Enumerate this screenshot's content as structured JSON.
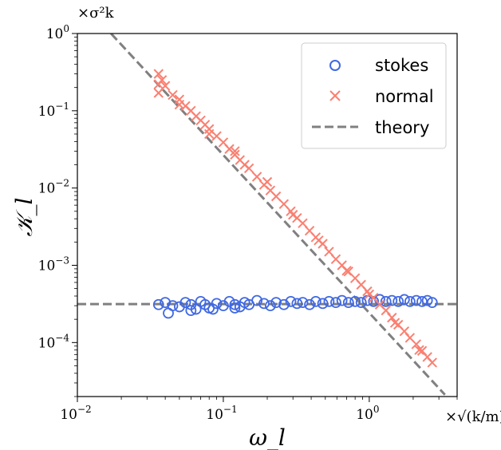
{
  "chart_data": {
    "type": "scatter",
    "xscale": "log",
    "yscale": "log",
    "xlim": [
      0.01,
      4.0
    ],
    "ylim": [
      2e-05,
      1.0
    ],
    "xlabel": "ω_l",
    "ylabel": "𝒦_l",
    "x_multiplier": "×√(k/m)",
    "y_multiplier": "×σ²k",
    "grid": false,
    "legend_position": "top-right",
    "x_ticks": [
      {
        "value": 0.01,
        "base": "10",
        "exp": "−2"
      },
      {
        "value": 0.1,
        "base": "10",
        "exp": "−1"
      },
      {
        "value": 1,
        "base": "10",
        "exp": "0"
      }
    ],
    "y_ticks": [
      {
        "value": 0.0001,
        "base": "10",
        "exp": "−4"
      },
      {
        "value": 0.001,
        "base": "10",
        "exp": "−3"
      },
      {
        "value": 0.01,
        "base": "10",
        "exp": "−2"
      },
      {
        "value": 0.1,
        "base": "10",
        "exp": "−1"
      },
      {
        "value": 1,
        "base": "10",
        "exp": "0"
      }
    ],
    "series": [
      {
        "name": "stokes",
        "marker": "circle",
        "color": "#4169e1",
        "points": [
          [
            0.036,
            0.00031
          ],
          [
            0.04,
            0.00033
          ],
          [
            0.045,
            0.0003
          ],
          [
            0.05,
            0.00029
          ],
          [
            0.055,
            0.00033
          ],
          [
            0.06,
            0.00031
          ],
          [
            0.065,
            0.00027
          ],
          [
            0.07,
            0.00034
          ],
          [
            0.075,
            0.00031
          ],
          [
            0.08,
            0.00028
          ],
          [
            0.09,
            0.00032
          ],
          [
            0.1,
            0.0003
          ],
          [
            0.11,
            0.00034
          ],
          [
            0.12,
            0.00031
          ],
          [
            0.13,
            0.00029
          ],
          [
            0.14,
            0.00033
          ],
          [
            0.15,
            0.00031
          ],
          [
            0.17,
            0.00035
          ],
          [
            0.19,
            0.00032
          ],
          [
            0.21,
            0.0003
          ],
          [
            0.23,
            0.00033
          ],
          [
            0.26,
            0.00031
          ],
          [
            0.29,
            0.00034
          ],
          [
            0.32,
            0.00032
          ],
          [
            0.35,
            0.00033
          ],
          [
            0.39,
            0.00031
          ],
          [
            0.43,
            0.00034
          ],
          [
            0.48,
            0.00032
          ],
          [
            0.53,
            0.00034
          ],
          [
            0.59,
            0.00033
          ],
          [
            0.65,
            0.00035
          ],
          [
            0.72,
            0.00033
          ],
          [
            0.8,
            0.00034
          ],
          [
            0.88,
            0.00033
          ],
          [
            0.97,
            0.00035
          ],
          [
            1.07,
            0.00034
          ],
          [
            1.18,
            0.00036
          ],
          [
            1.3,
            0.00034
          ],
          [
            1.43,
            0.00035
          ],
          [
            1.58,
            0.00034
          ],
          [
            1.74,
            0.00036
          ],
          [
            1.9,
            0.00034
          ],
          [
            2.1,
            0.00035
          ],
          [
            2.3,
            0.00034
          ],
          [
            2.5,
            0.00035
          ],
          [
            2.7,
            0.00033
          ],
          [
            0.042,
            0.00024
          ],
          [
            0.06,
            0.00026
          ],
          [
            0.085,
            0.00027
          ],
          [
            0.12,
            0.00028
          ]
        ]
      },
      {
        "name": "normal",
        "marker": "x",
        "color": "#fa8072",
        "points": [
          [
            0.036,
            0.3
          ],
          [
            0.036,
            0.22
          ],
          [
            0.036,
            0.17
          ],
          [
            0.038,
            0.25
          ],
          [
            0.04,
            0.21
          ],
          [
            0.045,
            0.16
          ],
          [
            0.05,
            0.14
          ],
          [
            0.055,
            0.115
          ],
          [
            0.06,
            0.1
          ],
          [
            0.065,
            0.085
          ],
          [
            0.07,
            0.075
          ],
          [
            0.075,
            0.066
          ],
          [
            0.08,
            0.058
          ],
          [
            0.09,
            0.047
          ],
          [
            0.1,
            0.039
          ],
          [
            0.11,
            0.032
          ],
          [
            0.12,
            0.027
          ],
          [
            0.13,
            0.023
          ],
          [
            0.14,
            0.02
          ],
          [
            0.15,
            0.018
          ],
          [
            0.17,
            0.014
          ],
          [
            0.19,
            0.011
          ],
          [
            0.21,
            0.0093
          ],
          [
            0.23,
            0.0078
          ],
          [
            0.26,
            0.0062
          ],
          [
            0.29,
            0.005
          ],
          [
            0.32,
            0.0041
          ],
          [
            0.35,
            0.0035
          ],
          [
            0.39,
            0.0028
          ],
          [
            0.43,
            0.0023
          ],
          [
            0.48,
            0.0019
          ],
          [
            0.53,
            0.0015
          ],
          [
            0.59,
            0.0012
          ],
          [
            0.65,
            0.001
          ],
          [
            0.72,
            0.00083
          ],
          [
            0.8,
            0.00068
          ],
          [
            0.88,
            0.00056
          ],
          [
            0.97,
            0.00046
          ],
          [
            1.07,
            0.00038
          ],
          [
            1.18,
            0.00031
          ],
          [
            1.3,
            0.00026
          ],
          [
            1.43,
            0.00021
          ],
          [
            1.58,
            0.00017
          ],
          [
            1.74,
            0.00014
          ],
          [
            1.9,
            0.000115
          ],
          [
            2.1,
            9.5e-05
          ],
          [
            2.3,
            7.8e-05
          ],
          [
            2.5,
            6.5e-05
          ],
          [
            2.7,
            5.5e-05
          ],
          [
            0.05,
            0.12
          ],
          [
            0.08,
            0.05
          ],
          [
            0.12,
            0.03
          ],
          [
            0.2,
            0.012
          ],
          [
            0.3,
            0.0045
          ],
          [
            0.45,
            0.0021
          ],
          [
            0.7,
            0.00085
          ],
          [
            1.0,
            0.00042
          ],
          [
            1.5,
            0.00018
          ],
          [
            2.2,
            8e-05
          ]
        ]
      },
      {
        "name": "theory",
        "style": "dashed",
        "color": "#808080",
        "segments": [
          [
            [
              0.017,
              1.0
            ],
            [
              3.3,
              2.11e-05
            ]
          ],
          [
            [
              0.01,
              0.000315
            ],
            [
              4.0,
              0.000315
            ]
          ]
        ]
      }
    ]
  }
}
